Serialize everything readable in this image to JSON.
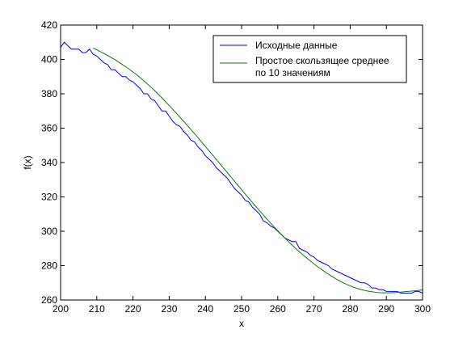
{
  "chart_data": {
    "type": "line",
    "title": "",
    "xlabel": "x",
    "ylabel": "f(x)",
    "xlim": [
      200,
      300
    ],
    "ylim": [
      260,
      420
    ],
    "x_ticks": [
      "200",
      "210",
      "220",
      "230",
      "240",
      "250",
      "260",
      "270",
      "280",
      "290",
      "300"
    ],
    "y_ticks": [
      "260",
      "280",
      "300",
      "320",
      "340",
      "360",
      "380",
      "400",
      "420"
    ],
    "grid": false,
    "legend_position": "top-right",
    "series": [
      {
        "name": "Исходные данные",
        "color": "#0000ff",
        "x": [
          200,
          201,
          202,
          203,
          204,
          205,
          206,
          207,
          208,
          209,
          210,
          211,
          212,
          213,
          214,
          215,
          216,
          217,
          218,
          219,
          220,
          221,
          222,
          223,
          224,
          225,
          226,
          227,
          228,
          229,
          230,
          231,
          232,
          233,
          234,
          235,
          236,
          237,
          238,
          239,
          240,
          241,
          242,
          243,
          244,
          245,
          246,
          247,
          248,
          249,
          250,
          251,
          252,
          253,
          254,
          255,
          256,
          257,
          258,
          259,
          260,
          261,
          262,
          263,
          264,
          265,
          266,
          267,
          268,
          269,
          270,
          271,
          272,
          273,
          274,
          275,
          276,
          277,
          278,
          279,
          280,
          281,
          282,
          283,
          284,
          285,
          286,
          287,
          288,
          289,
          290,
          291,
          292,
          293,
          294,
          295,
          296,
          297,
          298,
          299,
          300
        ],
        "y": [
          407,
          410,
          408,
          406,
          406,
          406,
          404,
          404,
          406,
          403,
          402,
          400,
          398,
          397,
          394,
          394,
          392,
          390,
          390,
          388,
          387,
          385,
          383,
          380,
          380,
          377,
          376,
          373,
          370,
          370,
          367,
          364,
          362,
          361,
          358,
          356,
          353,
          352,
          349,
          347,
          344,
          342,
          340,
          337,
          335,
          333,
          331,
          328,
          325,
          323,
          321,
          318,
          317,
          314,
          312,
          310,
          306,
          305,
          303,
          302,
          300,
          298,
          296,
          295,
          294,
          294,
          290,
          289,
          288,
          286,
          285,
          283,
          282,
          281,
          280,
          278,
          277,
          276,
          275,
          274,
          273,
          272,
          271,
          270,
          270,
          269,
          267,
          267,
          266,
          266,
          265,
          265,
          265,
          265,
          264,
          264,
          264,
          264,
          265,
          265,
          264
        ]
      },
      {
        "name": "Простое скользящее среднее по 10 значениям",
        "color": "#008000",
        "x": [
          209,
          210,
          211,
          212,
          213,
          214,
          215,
          216,
          217,
          218,
          219,
          220,
          221,
          222,
          223,
          224,
          225,
          226,
          227,
          228,
          229,
          230,
          231,
          232,
          233,
          234,
          235,
          236,
          237,
          238,
          239,
          240,
          241,
          242,
          243,
          244,
          245,
          246,
          247,
          248,
          249,
          250,
          251,
          252,
          253,
          254,
          255,
          256,
          257,
          258,
          259,
          260,
          261,
          262,
          263,
          264,
          265,
          266,
          267,
          268,
          269,
          270,
          271,
          272,
          273,
          274,
          275,
          276,
          277,
          278,
          279,
          280,
          281,
          282,
          283,
          284,
          285,
          286,
          287,
          288,
          289,
          290,
          291,
          292,
          293,
          294,
          295,
          296,
          297,
          298,
          299,
          300
        ],
        "y": [
          406.6,
          405.6,
          404.5,
          403.5,
          402.3,
          401.1,
          399.9,
          398.5,
          397.1,
          395.7,
          394.3,
          392.7,
          391.1,
          389.4,
          387.6,
          385.7,
          383.8,
          381.8,
          379.7,
          377.6,
          375.4,
          373.2,
          370.9,
          368.6,
          366.3,
          364.0,
          361.6,
          359.2,
          356.8,
          354.3,
          351.8,
          349.3,
          346.8,
          344.3,
          341.8,
          339.3,
          336.8,
          334.3,
          331.8,
          329.2,
          326.7,
          324.2,
          321.7,
          319.2,
          316.7,
          314.3,
          311.9,
          309.5,
          307.1,
          304.8,
          302.5,
          300.3,
          298.1,
          296.0,
          293.9,
          291.9,
          289.9,
          288.0,
          286.2,
          284.4,
          282.7,
          281.0,
          279.4,
          277.9,
          276.4,
          275.0,
          273.7,
          272.4,
          271.2,
          270.1,
          269.1,
          268.2,
          267.4,
          266.7,
          266.1,
          265.6,
          265.1,
          264.8,
          264.5,
          264.3,
          264.2,
          264.2,
          264.2,
          264.3,
          264.4,
          264.6,
          264.8,
          265.0,
          265.2,
          265.4,
          265.6,
          265.9
        ]
      }
    ],
    "legend_entries": [
      [
        "Исходные данные"
      ],
      [
        "Простое скользящее среднее",
        "по 10 значениям"
      ]
    ]
  }
}
